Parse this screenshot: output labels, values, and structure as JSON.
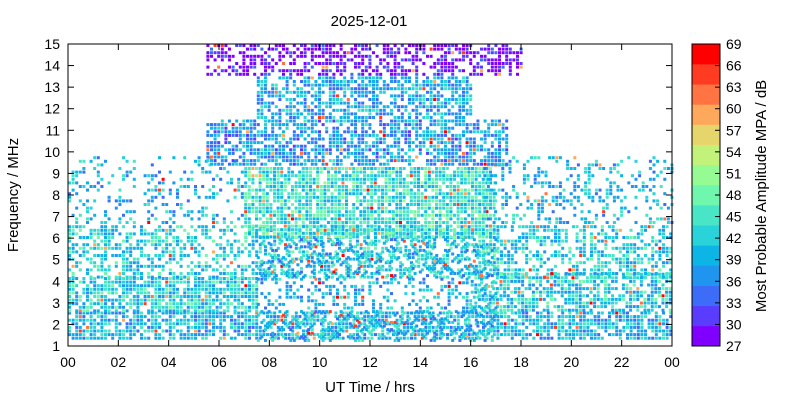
{
  "chart_data": {
    "type": "heatmap",
    "title": "2025-12-01",
    "xlabel": "UT Time / hrs",
    "ylabel": "Frequency / MHz",
    "colorbar_label": "Most Probable Amplitude MPA / dB",
    "xlim": [
      0,
      24
    ],
    "ylim": [
      1,
      15
    ],
    "x_ticks": [
      "00",
      "02",
      "04",
      "06",
      "08",
      "10",
      "12",
      "14",
      "16",
      "18",
      "20",
      "22",
      "00"
    ],
    "y_ticks": [
      "1",
      "2",
      "3",
      "4",
      "5",
      "6",
      "7",
      "8",
      "9",
      "10",
      "11",
      "12",
      "13",
      "14",
      "15"
    ],
    "colorbar_ticks": [
      "27",
      "30",
      "33",
      "36",
      "39",
      "42",
      "45",
      "48",
      "51",
      "54",
      "57",
      "60",
      "63",
      "66",
      "69"
    ],
    "colorbar_range": [
      27,
      69
    ],
    "colorbar_colors": [
      "#7f00ff",
      "#5a3cff",
      "#3d6cf9",
      "#1f95f0",
      "#0db4e6",
      "#2ad2d9",
      "#48e6c6",
      "#6ef7ad",
      "#95fb93",
      "#c3f27a",
      "#e6d56a",
      "#fda85a",
      "#ff7442",
      "#ff3c22",
      "#ff0000"
    ],
    "grid": false,
    "regions": [
      {
        "x": [
          0,
          24
        ],
        "y": [
          1.3,
          2.6
        ],
        "level": 40,
        "density": 0.75
      },
      {
        "x": [
          0,
          7.5
        ],
        "y": [
          2.6,
          4.2
        ],
        "level": 42,
        "density": 0.8
      },
      {
        "x": [
          16,
          24
        ],
        "y": [
          2.6,
          4.4
        ],
        "level": 42,
        "density": 0.7
      },
      {
        "x": [
          0,
          24
        ],
        "y": [
          4.2,
          6.6
        ],
        "level": 42,
        "density": 0.5
      },
      {
        "x": [
          0,
          7
        ],
        "y": [
          6.6,
          9.8
        ],
        "level": 40,
        "density": 0.25
      },
      {
        "x": [
          7,
          17
        ],
        "y": [
          6,
          9.3
        ],
        "level": 44,
        "density": 0.8
      },
      {
        "x": [
          16.5,
          24
        ],
        "y": [
          6.6,
          9.8
        ],
        "level": 40,
        "density": 0.3
      },
      {
        "x": [
          7.5,
          17
        ],
        "y": [
          1.2,
          6
        ],
        "level": 40,
        "density": 0.35
      },
      {
        "x": [
          5.5,
          17.5
        ],
        "y": [
          9.3,
          11.5
        ],
        "level": 38,
        "density": 0.7
      },
      {
        "x": [
          7.5,
          16
        ],
        "y": [
          11.5,
          13.5
        ],
        "level": 39,
        "density": 0.65
      },
      {
        "x": [
          5.5,
          18
        ],
        "y": [
          13.5,
          15
        ],
        "level": 28,
        "density": 0.55
      }
    ]
  }
}
